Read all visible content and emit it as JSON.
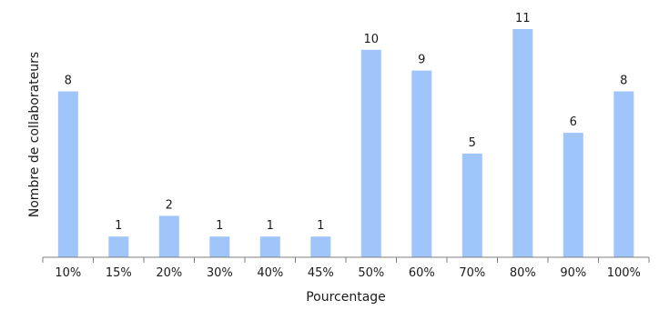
{
  "chart_data": {
    "type": "bar",
    "categories": [
      "10%",
      "15%",
      "20%",
      "30%",
      "40%",
      "45%",
      "50%",
      "60%",
      "70%",
      "80%",
      "90%",
      "100%"
    ],
    "values": [
      8,
      1,
      2,
      1,
      1,
      1,
      10,
      9,
      5,
      11,
      6,
      8
    ],
    "title": "",
    "xlabel": "Pourcentage",
    "ylabel": "Nombre de collaborateurs",
    "ylim": [
      0,
      11
    ],
    "grid": false,
    "legend": "none",
    "bar_color": "#9fc5fb",
    "axis_color": "#7f7f7f",
    "data_labels": true
  }
}
